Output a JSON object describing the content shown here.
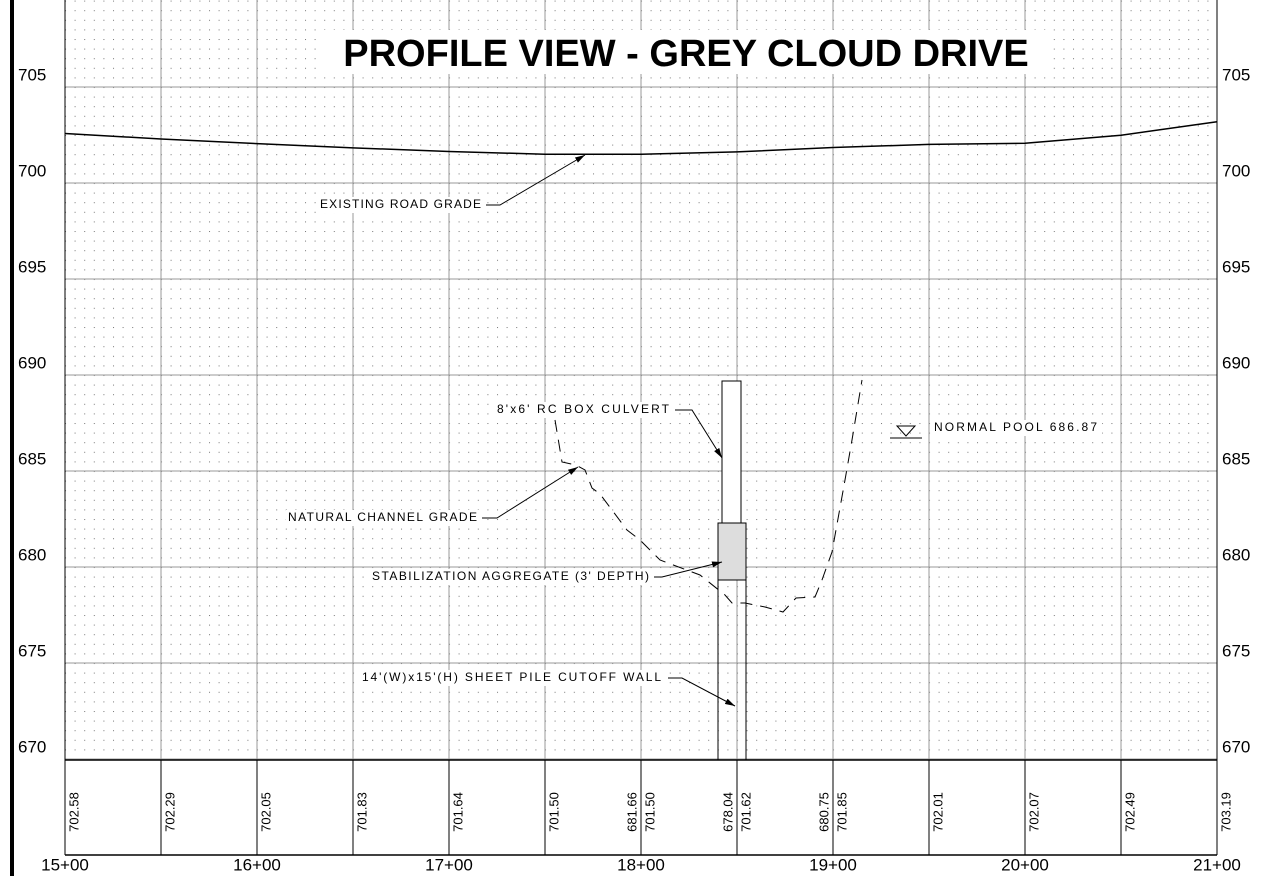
{
  "header": {
    "title": "PROFILE VIEW - GREY CLOUD DRIVE"
  },
  "elevation_labels": [
    705,
    700,
    695,
    690,
    685,
    680,
    675,
    670
  ],
  "stations": [
    "15+00",
    "16+00",
    "17+00",
    "18+00",
    "19+00",
    "20+00",
    "21+00"
  ],
  "existing_grade": [
    "702.58",
    "702.29",
    "702.05",
    "701.83",
    "701.64",
    "701.50",
    "701.50",
    "701.62",
    "701.85",
    "702.01",
    "702.07",
    "702.49",
    "703.19"
  ],
  "channel_grade": [
    null,
    null,
    null,
    null,
    null,
    null,
    "681.66",
    "678.04",
    "680.75",
    null,
    null,
    null,
    null
  ],
  "annotations": {
    "road": "EXISTING ROAD GRADE",
    "culvert": "8'x6' RC BOX CULVERT",
    "channel": "NATURAL CHANNEL GRADE",
    "aggregate": "STABILIZATION AGGREGATE (3' DEPTH)",
    "wall": "14'(W)x15'(H) SHEET PILE CUTOFF WALL",
    "pool": "NORMAL POOL 686.87"
  }
}
